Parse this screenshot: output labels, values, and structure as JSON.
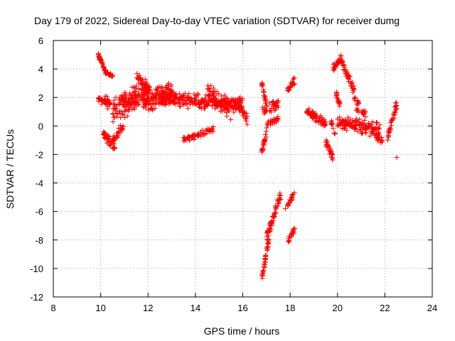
{
  "chart_data": {
    "type": "scatter",
    "title": "Day 179 of 2022, Sidereal Day-to-day VTEC variation (SDTVAR) for receiver dumg",
    "xlabel": "GPS time / hours",
    "ylabel": "SDTVAR / TECUs",
    "xlim": [
      8,
      24
    ],
    "ylim": [
      -12,
      6
    ],
    "xticks": [
      8,
      10,
      12,
      14,
      16,
      18,
      20,
      22,
      24
    ],
    "yticks": [
      -12,
      -10,
      -8,
      -6,
      -4,
      -2,
      0,
      2,
      4,
      6
    ],
    "grid": true,
    "marker": "+",
    "color": "#ff0000",
    "segments": [
      {
        "x0": 9.9,
        "x1": 10.2,
        "y0": 5.0,
        "y1": 3.8,
        "noise": 0.2,
        "n": 40
      },
      {
        "x0": 10.2,
        "x1": 10.5,
        "y0": 3.8,
        "y1": 3.5,
        "noise": 0.2,
        "n": 20
      },
      {
        "x0": 9.9,
        "x1": 10.4,
        "y0": 2.0,
        "y1": 1.5,
        "noise": 0.5,
        "n": 40
      },
      {
        "x0": 10.1,
        "x1": 10.6,
        "y0": -0.5,
        "y1": -1.5,
        "noise": 0.4,
        "n": 40
      },
      {
        "x0": 10.5,
        "x1": 11.0,
        "y0": -1.0,
        "y1": 0.0,
        "noise": 0.4,
        "n": 30
      },
      {
        "x0": 10.5,
        "x1": 12.0,
        "y0": 1.0,
        "y1": 2.5,
        "noise": 1.0,
        "n": 180
      },
      {
        "x0": 11.5,
        "x1": 12.1,
        "y0": 3.5,
        "y1": 2.5,
        "noise": 0.4,
        "n": 40
      },
      {
        "x0": 11.8,
        "x1": 13.0,
        "y0": 1.5,
        "y1": 2.5,
        "noise": 0.8,
        "n": 120
      },
      {
        "x0": 12.5,
        "x1": 16.0,
        "y0": 2.0,
        "y1": 1.5,
        "noise": 0.6,
        "n": 320
      },
      {
        "x0": 13.5,
        "x1": 14.8,
        "y0": -1.0,
        "y1": -0.2,
        "noise": 0.25,
        "n": 60
      },
      {
        "x0": 14.5,
        "x1": 15.5,
        "y0": 2.5,
        "y1": 1.0,
        "noise": 0.7,
        "n": 60
      },
      {
        "x0": 15.8,
        "x1": 16.2,
        "y0": 1.5,
        "y1": 0.5,
        "noise": 0.5,
        "n": 30
      },
      {
        "x0": 16.8,
        "x1": 17.0,
        "y0": 3.0,
        "y1": 1.5,
        "noise": 0.3,
        "n": 20
      },
      {
        "x0": 16.8,
        "x1": 17.5,
        "y0": 1.0,
        "y1": 1.6,
        "noise": 0.4,
        "n": 40
      },
      {
        "x0": 16.8,
        "x1": 17.0,
        "y0": -1.8,
        "y1": -0.5,
        "noise": 0.3,
        "n": 25
      },
      {
        "x0": 17.0,
        "x1": 17.5,
        "y0": 0.0,
        "y1": 0.5,
        "noise": 0.3,
        "n": 25
      },
      {
        "x0": 16.8,
        "x1": 17.1,
        "y0": -10.8,
        "y1": -8.0,
        "noise": 0.3,
        "n": 40
      },
      {
        "x0": 17.0,
        "x1": 17.6,
        "y0": -8.0,
        "y1": -4.8,
        "noise": 0.5,
        "n": 60
      },
      {
        "x0": 17.9,
        "x1": 18.2,
        "y0": 2.5,
        "y1": 3.2,
        "noise": 0.3,
        "n": 25
      },
      {
        "x0": 17.9,
        "x1": 18.2,
        "y0": -8.2,
        "y1": -7.2,
        "noise": 0.3,
        "n": 20
      },
      {
        "x0": 17.9,
        "x1": 18.2,
        "y0": -5.5,
        "y1": -4.7,
        "noise": 0.3,
        "n": 20
      },
      {
        "x0": 18.7,
        "x1": 19.5,
        "y0": 1.0,
        "y1": 0.2,
        "noise": 0.4,
        "n": 70
      },
      {
        "x0": 19.5,
        "x1": 19.8,
        "y0": -1.0,
        "y1": -2.2,
        "noise": 0.4,
        "n": 30
      },
      {
        "x0": 19.7,
        "x1": 19.9,
        "y0": 0.5,
        "y1": -0.5,
        "noise": 0.3,
        "n": 12
      },
      {
        "x0": 19.8,
        "x1": 20.1,
        "y0": 4.0,
        "y1": 4.6,
        "noise": 0.3,
        "n": 25
      },
      {
        "x0": 19.9,
        "x1": 20.1,
        "y0": 2.5,
        "y1": 1.5,
        "noise": 0.3,
        "n": 20
      },
      {
        "x0": 20.1,
        "x1": 20.7,
        "y0": 4.8,
        "y1": 2.5,
        "noise": 0.4,
        "n": 50
      },
      {
        "x0": 20.7,
        "x1": 20.9,
        "y0": 2.0,
        "y1": 1.5,
        "noise": 0.3,
        "n": 12
      },
      {
        "x0": 20.0,
        "x1": 21.8,
        "y0": 0.3,
        "y1": -0.3,
        "noise": 0.6,
        "n": 150
      },
      {
        "x0": 20.8,
        "x1": 21.2,
        "y0": 1.2,
        "y1": 0.8,
        "noise": 0.3,
        "n": 20
      },
      {
        "x0": 21.6,
        "x1": 21.9,
        "y0": -0.8,
        "y1": -1.0,
        "noise": 0.3,
        "n": 20
      },
      {
        "x0": 22.1,
        "x1": 22.5,
        "y0": -0.8,
        "y1": 1.5,
        "noise": 0.4,
        "n": 40
      }
    ],
    "points": [
      [
        22.5,
        -2.2
      ],
      [
        17.8,
        -5.8
      ],
      [
        19.3,
        0.1
      ],
      [
        13.5,
        -0.8
      ]
    ]
  }
}
